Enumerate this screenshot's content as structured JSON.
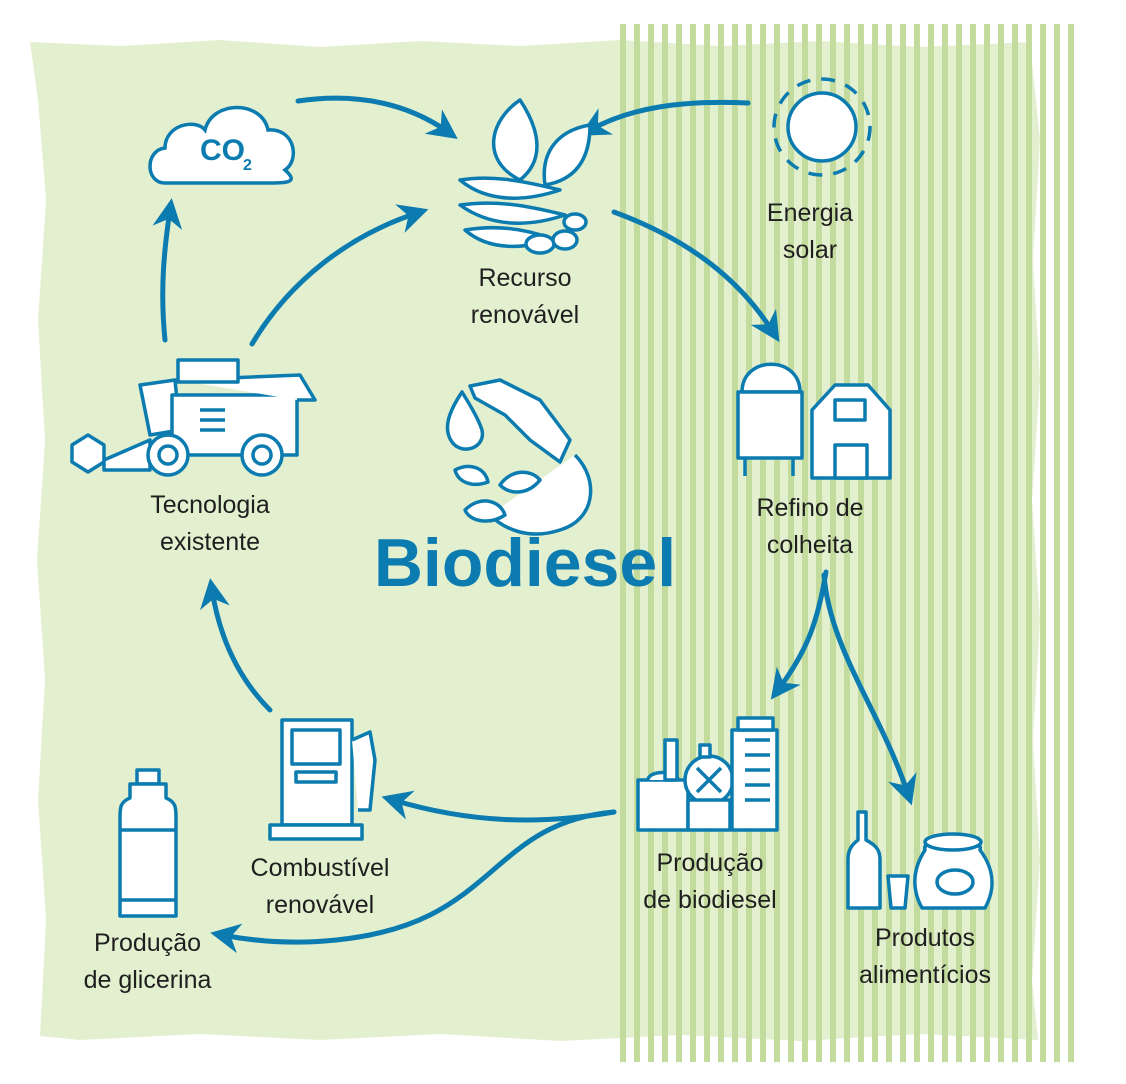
{
  "title": "Biodiesel",
  "co2": {
    "main": "CO",
    "sub": "2"
  },
  "nodes": {
    "recurso": {
      "line1": "Recurso",
      "line2": "renovável"
    },
    "energia": {
      "line1": "Energia",
      "line2": "solar"
    },
    "refino": {
      "line1": "Refino de",
      "line2": "colheita"
    },
    "producao_biodiesel": {
      "line1": "Produção",
      "line2": "de biodiesel"
    },
    "produtos": {
      "line1": "Produtos",
      "line2": "alimentícios"
    },
    "combustivel": {
      "line1": "Combustível",
      "line2": "renovável"
    },
    "glicerina": {
      "line1": "Produção",
      "line2": "de glicerina"
    },
    "tecnologia": {
      "line1": "Tecnologia",
      "line2": "existente"
    }
  },
  "colors": {
    "accent": "#0b7bb0",
    "background": "#e3f0cf",
    "stripe": "#c3dc9e",
    "text": "#1f1f1f"
  }
}
